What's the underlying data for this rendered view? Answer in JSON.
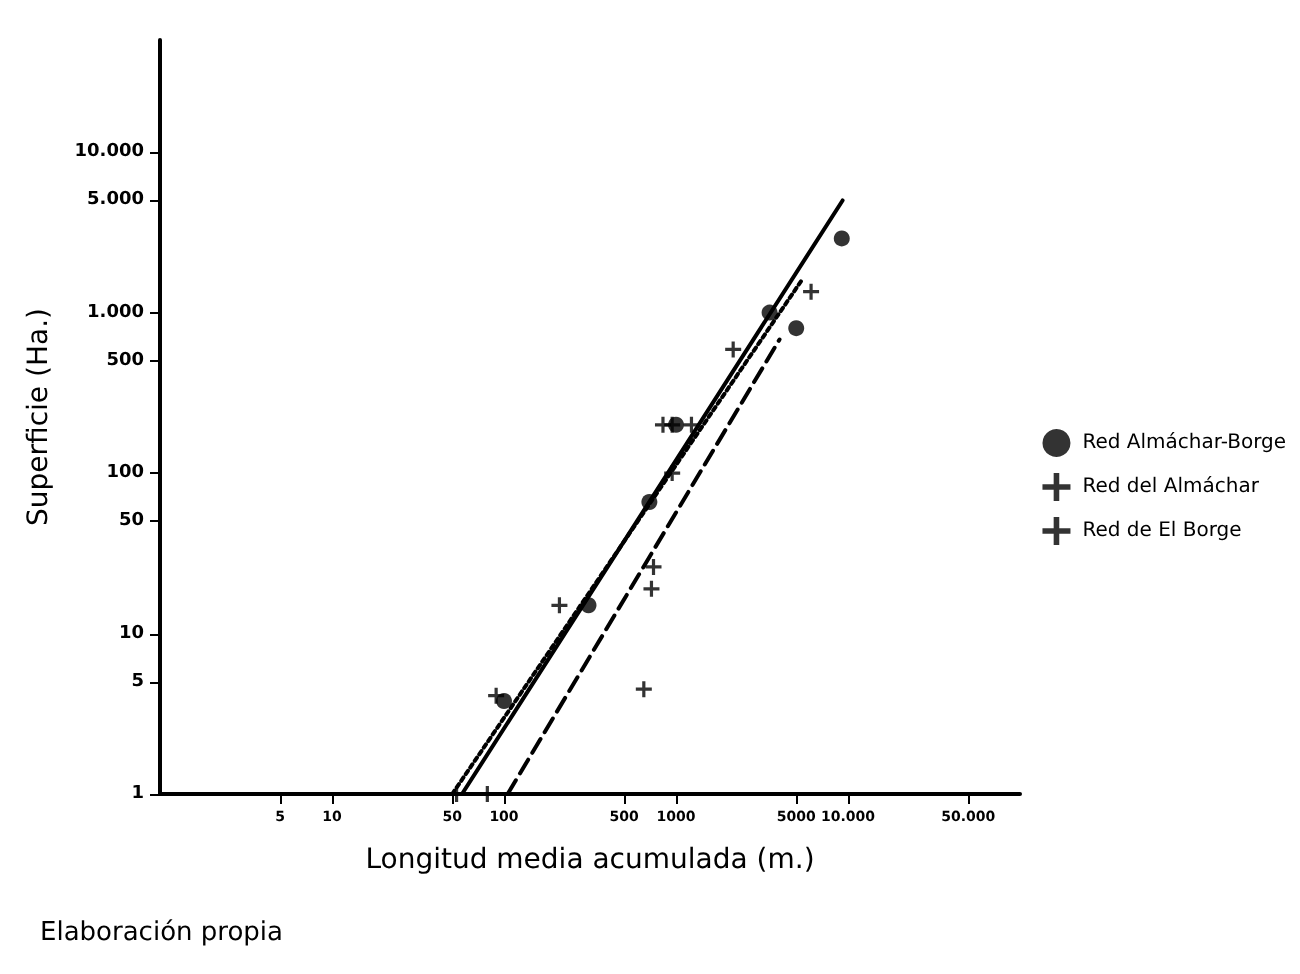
{
  "chart_data": {
    "type": "scatter",
    "xlabel": "Longitud media acumulada (m.)",
    "ylabel": "Superficie (Ha.)",
    "log": "xy",
    "grid": false,
    "legend": "right",
    "xlim": [
      1,
      100000
    ],
    "ylim": [
      1,
      50000
    ],
    "xticks": [
      5,
      10,
      50,
      100,
      500,
      1000,
      5000,
      {
        "value": 10000,
        "label": "10.000"
      },
      {
        "value": 50000,
        "label": "50.000"
      }
    ],
    "yticks": [
      1,
      5,
      10,
      50,
      100,
      500,
      {
        "value": 1000,
        "label": "1.000"
      },
      {
        "value": 5000,
        "label": "5.000"
      },
      {
        "value": 10000,
        "label": "10.000"
      }
    ],
    "annotations": [
      "Elaboración propia"
    ],
    "series": [
      {
        "name": "Red Almáchar-Borge",
        "marker": "circle",
        "color": "#000000",
        "x": [
          100,
          310,
          700,
          1000,
          3500,
          5000,
          9200
        ],
        "values": [
          3.8,
          15,
          66,
          200,
          1000,
          800,
          2900
        ]
      },
      {
        "name": "Red del Almáchar",
        "marker": "cross",
        "color": "#000000",
        "x": [
          53,
          90,
          210,
          740,
          840,
          950,
          1230,
          2150,
          6100
        ],
        "values": [
          1,
          4.1,
          15,
          26,
          200,
          200,
          200,
          590,
          1350
        ]
      },
      {
        "name": "Red de El Borge",
        "marker": "cross",
        "color": "#000000",
        "x": [
          80,
          650,
          720,
          950
        ],
        "values": [
          1,
          4.5,
          19,
          100
        ]
      },
      {
        "type": "line",
        "line_style": "solid",
        "marker": "none",
        "color": "#000000",
        "x": [
          57,
          9300
        ],
        "values": [
          1,
          5000
        ]
      },
      {
        "type": "line",
        "line_style": "dotted",
        "marker": "none",
        "color": "#000000",
        "x": [
          50,
          5400
        ],
        "values": [
          1,
          1600
        ]
      },
      {
        "type": "line",
        "line_style": "dashed",
        "marker": "none",
        "color": "#000000",
        "x": [
          105,
          4000
        ],
        "values": [
          1,
          680
        ]
      }
    ]
  }
}
